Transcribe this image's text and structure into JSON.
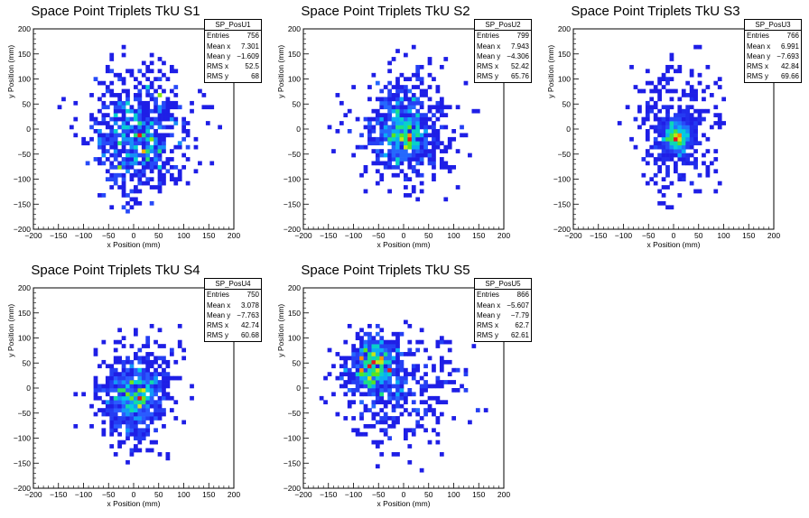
{
  "chart_data": [
    {
      "type": "heatmap",
      "title": "Space Point Triplets TkU S1",
      "xlabel": "x Position (mm)",
      "ylabel": "y Position (mm)",
      "xlim": [
        -200,
        200
      ],
      "ylim": [
        -200,
        200
      ],
      "xticks": [
        "−200",
        "−150",
        "−100",
        "−50",
        "0",
        "50",
        "100",
        "150",
        "200"
      ],
      "yticks": [
        "−200",
        "−150",
        "−100",
        "−50",
        "0",
        "50",
        "100",
        "150",
        "200"
      ],
      "stats": {
        "name": "SP_PosU1",
        "rows": [
          {
            "label": "Entries",
            "value": "756"
          },
          {
            "label": "Mean x",
            "value": "7.301"
          },
          {
            "label": "Mean y",
            "value": "−1.609"
          },
          {
            "label": "RMS x",
            "value": "52.5"
          },
          {
            "label": "RMS y",
            "value": "68"
          }
        ]
      },
      "entries": 756,
      "mean_x": 7.301,
      "mean_y": -1.609,
      "rms_x": 52.5,
      "rms_y": 68,
      "peak": {
        "x": 7,
        "y": -25,
        "spread": 45,
        "weight": 0.6
      },
      "seed": 11
    },
    {
      "type": "heatmap",
      "title": "Space Point Triplets TkU S2",
      "xlabel": "x Position (mm)",
      "ylabel": "y Position (mm)",
      "xlim": [
        -200,
        200
      ],
      "ylim": [
        -200,
        200
      ],
      "xticks": [
        "−200",
        "−150",
        "−100",
        "−50",
        "0",
        "50",
        "100",
        "150",
        "200"
      ],
      "yticks": [
        "−200",
        "−150",
        "−100",
        "−50",
        "0",
        "50",
        "100",
        "150",
        "200"
      ],
      "stats": {
        "name": "SP_PosU2",
        "rows": [
          {
            "label": "Entries",
            "value": "799"
          },
          {
            "label": "Mean x",
            "value": "7.943"
          },
          {
            "label": "Mean y",
            "value": "−4.306"
          },
          {
            "label": "RMS x",
            "value": "52.42"
          },
          {
            "label": "RMS y",
            "value": "65.76"
          }
        ]
      },
      "entries": 799,
      "mean_x": 7.943,
      "mean_y": -4.306,
      "rms_x": 52.42,
      "rms_y": 65.76,
      "peak": {
        "x": 0,
        "y": -10,
        "spread": 28,
        "weight": 0.9
      },
      "seed": 23
    },
    {
      "type": "heatmap",
      "title": "Space Point Triplets TkU S3",
      "xlabel": "x Position (mm)",
      "ylabel": "y Position (mm)",
      "xlim": [
        -200,
        200
      ],
      "ylim": [
        -200,
        200
      ],
      "xticks": [
        "−200",
        "−150",
        "−100",
        "−50",
        "0",
        "50",
        "100",
        "150",
        "200"
      ],
      "yticks": [
        "−200",
        "−150",
        "−100",
        "−50",
        "0",
        "50",
        "100",
        "150",
        "200"
      ],
      "stats": {
        "name": "SP_PosU3",
        "rows": [
          {
            "label": "Entries",
            "value": "766"
          },
          {
            "label": "Mean x",
            "value": "6.991"
          },
          {
            "label": "Mean y",
            "value": "−7.693"
          },
          {
            "label": "RMS x",
            "value": "42.84"
          },
          {
            "label": "RMS y",
            "value": "69.66"
          }
        ]
      },
      "entries": 766,
      "mean_x": 6.991,
      "mean_y": -7.693,
      "rms_x": 42.84,
      "rms_y": 69.66,
      "peak": {
        "x": 5,
        "y": -15,
        "spread": 15,
        "weight": 1.5
      },
      "seed": 37
    },
    {
      "type": "heatmap",
      "title": "Space Point Triplets TkU S4",
      "xlabel": "x Position (mm)",
      "ylabel": "y Position (mm)",
      "xlim": [
        -200,
        200
      ],
      "ylim": [
        -200,
        200
      ],
      "xticks": [
        "−200",
        "−150",
        "−100",
        "−50",
        "0",
        "50",
        "100",
        "150",
        "200"
      ],
      "yticks": [
        "−200",
        "−150",
        "−100",
        "−50",
        "0",
        "50",
        "100",
        "150",
        "200"
      ],
      "stats": {
        "name": "SP_PosU4",
        "rows": [
          {
            "label": "Entries",
            "value": "750"
          },
          {
            "label": "Mean x",
            "value": "3.078"
          },
          {
            "label": "Mean y",
            "value": "−7.763"
          },
          {
            "label": "RMS x",
            "value": "42.74"
          },
          {
            "label": "RMS y",
            "value": "60.68"
          }
        ]
      },
      "entries": 750,
      "mean_x": 3.078,
      "mean_y": -7.763,
      "rms_x": 42.74,
      "rms_y": 60.68,
      "peak": {
        "x": 0,
        "y": -20,
        "spread": 30,
        "weight": 1.1
      },
      "seed": 41
    },
    {
      "type": "heatmap",
      "title": "Space Point Triplets TkU S5",
      "xlabel": "x Position (mm)",
      "ylabel": "y Position (mm)",
      "xlim": [
        -200,
        200
      ],
      "ylim": [
        -200,
        200
      ],
      "xticks": [
        "−200",
        "−150",
        "−100",
        "−50",
        "0",
        "50",
        "100",
        "150",
        "200"
      ],
      "yticks": [
        "−200",
        "−150",
        "−100",
        "−50",
        "0",
        "50",
        "100",
        "150",
        "200"
      ],
      "stats": {
        "name": "SP_PosU5",
        "rows": [
          {
            "label": "Entries",
            "value": "866"
          },
          {
            "label": "Mean x",
            "value": "−5.607"
          },
          {
            "label": "Mean y",
            "value": "−7.79"
          },
          {
            "label": "RMS x",
            "value": "62.7"
          },
          {
            "label": "RMS y",
            "value": "62.61"
          }
        ]
      },
      "entries": 866,
      "mean_x": -5.607,
      "mean_y": -7.79,
      "rms_x": 62.7,
      "rms_y": 62.61,
      "peak": {
        "x": -60,
        "y": 45,
        "spread": 25,
        "weight": 1.2
      },
      "seed": 53
    }
  ]
}
